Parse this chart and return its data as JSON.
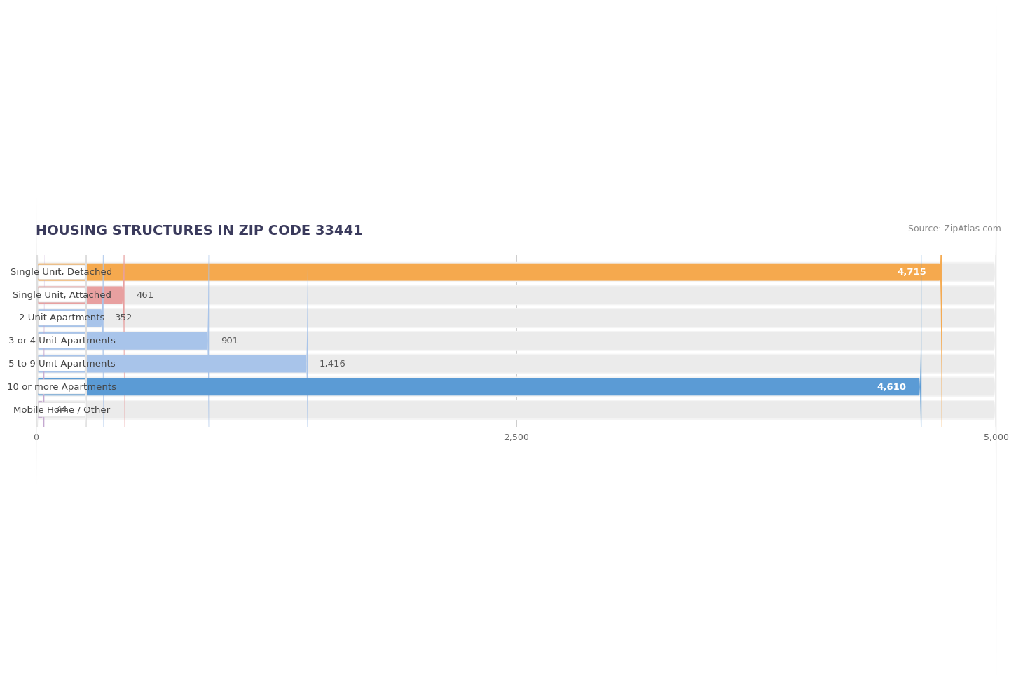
{
  "title": "HOUSING STRUCTURES IN ZIP CODE 33441",
  "source": "Source: ZipAtlas.com",
  "categories": [
    "Single Unit, Detached",
    "Single Unit, Attached",
    "2 Unit Apartments",
    "3 or 4 Unit Apartments",
    "5 to 9 Unit Apartments",
    "10 or more Apartments",
    "Mobile Home / Other"
  ],
  "values": [
    4715,
    461,
    352,
    901,
    1416,
    4610,
    44
  ],
  "bar_colors": [
    "#F5A94E",
    "#E8A0A0",
    "#A8C4EA",
    "#A8C4EA",
    "#A8C4EA",
    "#5B9BD5",
    "#C4A8D0"
  ],
  "xlim": [
    0,
    5000
  ],
  "xticks": [
    0,
    2500,
    5000
  ],
  "background_color": "#FFFFFF",
  "bar_bg_color": "#EBEBEB",
  "bar_row_bg": "#F4F4F4",
  "title_fontsize": 14,
  "source_fontsize": 9,
  "label_fontsize": 9.5,
  "value_fontsize": 9.5
}
